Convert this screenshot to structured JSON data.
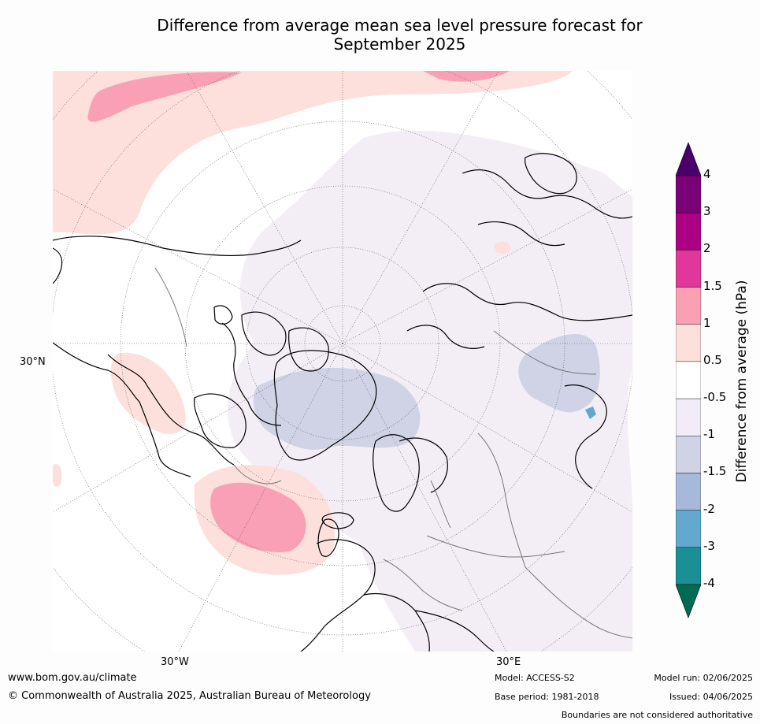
{
  "title_line1": "Difference from average mean sea level pressure forecast for",
  "title_line2": "September 2025",
  "map": {
    "lat_label": "30°N",
    "lon_labels": [
      "30°W",
      "30°E"
    ]
  },
  "colorbar": {
    "title": "Difference from average (hPa)",
    "colors": [
      "#006b52",
      "#1a8f95",
      "#63a8cf",
      "#a7b9d8",
      "#d0d3e6",
      "#f1ecf5",
      "#ffffff",
      "#fde0dc",
      "#f9a0b5",
      "#e1379a",
      "#ac0184",
      "#7a0177",
      "#4a006a"
    ],
    "ticks": [
      "4",
      "3",
      "2",
      "1.5",
      "1",
      "0.5",
      "-0.5",
      "-1",
      "-1.5",
      "-2",
      "-3",
      "-4"
    ]
  },
  "footer": {
    "website": "www.bom.gov.au/climate",
    "copyright": "© Commonwealth of Australia 2025, Australian Bureau of Meteorology",
    "model": "Model: ACCESS-S2",
    "base_period": "Base period: 1981-2018",
    "model_run": "Model run: 02/06/2025",
    "issued": "Issued: 04/06/2025",
    "disclaimer": "Boundaries are not considered authoritative"
  }
}
